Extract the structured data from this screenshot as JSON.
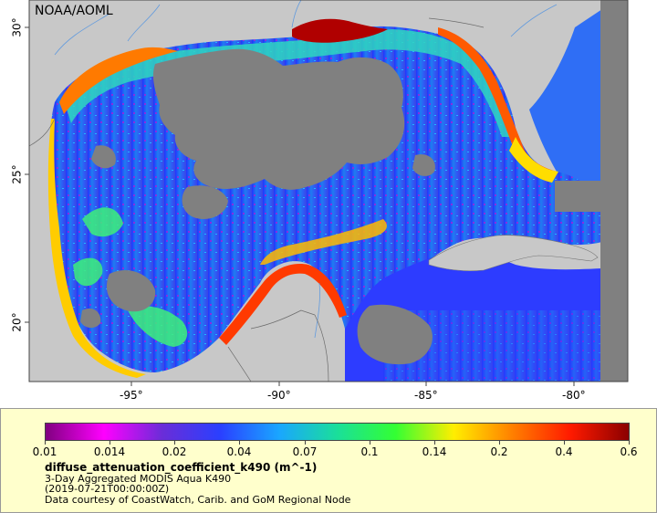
{
  "credit": "NOAA/AOML",
  "axes": {
    "lon_labels": [
      "-95°",
      "-90°",
      "-85°",
      "-80°"
    ],
    "lat_labels": [
      "30°",
      "25°",
      "20°"
    ]
  },
  "legend": {
    "ticks": [
      "0.01",
      "0.014",
      "0.02",
      "0.04",
      "0.07",
      "0.1",
      "0.14",
      "0.2",
      "0.4",
      "0.6"
    ],
    "variable": "diffuse_attenuation_coefficient_k490 (m^-1)",
    "dataset": "3-Day Aggregated MODIS Aqua K490",
    "time": "(2019-07-21T00:00:00Z)",
    "source": "Data courtesy of CoastWatch, Carib. and GoM Regional Node"
  },
  "colors": {
    "land": "#c8c8c8",
    "no_data": "#808080",
    "legend_bg": "#ffffcc",
    "colormap": [
      "#800080",
      "#ff00ff",
      "#6a2dd8",
      "#2a40ff",
      "#1aa6ff",
      "#1adf9a",
      "#33ff33",
      "#ffee00",
      "#ff8000",
      "#ff1a00",
      "#8b0000"
    ]
  }
}
